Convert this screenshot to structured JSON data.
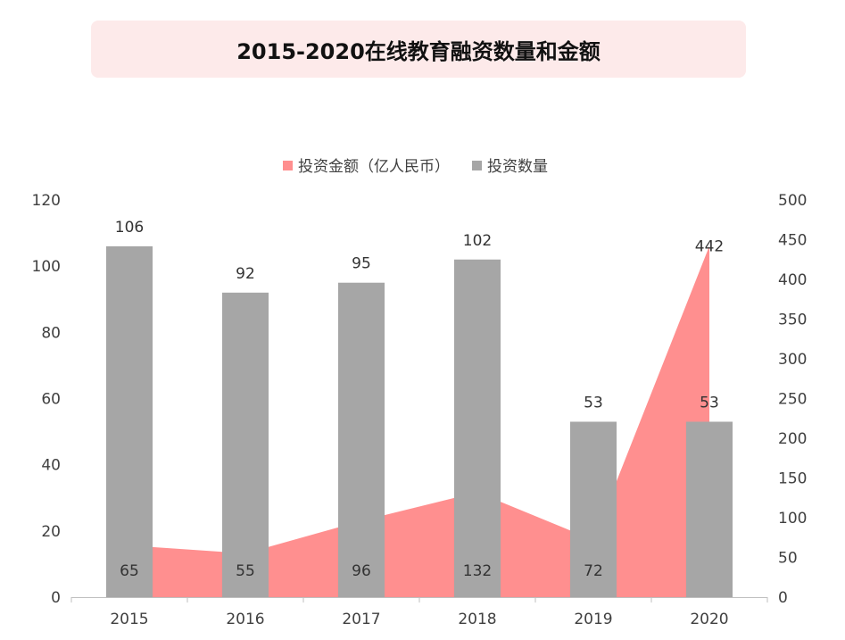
{
  "title": "2015-2020在线教育融资数量和金额",
  "chart_data": {
    "type": "bar",
    "title": "2015-2020在线教育融资数量和金额",
    "categories": [
      "2015",
      "2016",
      "2017",
      "2018",
      "2019",
      "2020"
    ],
    "series": [
      {
        "name": "投资金额（亿人民币）",
        "type": "area",
        "axis": "right",
        "color": "#ff8f8f",
        "values": [
          65,
          55,
          96,
          132,
          72,
          442
        ]
      },
      {
        "name": "投资数量",
        "type": "bar",
        "axis": "left",
        "color": "#a6a6a6",
        "values": [
          106,
          92,
          95,
          102,
          53,
          53
        ]
      }
    ],
    "y_left": {
      "min": 0,
      "max": 120,
      "ticks": [
        "0",
        "20",
        "40",
        "60",
        "80",
        "100",
        "120"
      ]
    },
    "y_right": {
      "min": 0,
      "max": 500,
      "ticks": [
        "0",
        "50",
        "100",
        "150",
        "200",
        "250",
        "300",
        "350",
        "400",
        "450",
        "500"
      ]
    },
    "legend": "top",
    "grid": false
  }
}
